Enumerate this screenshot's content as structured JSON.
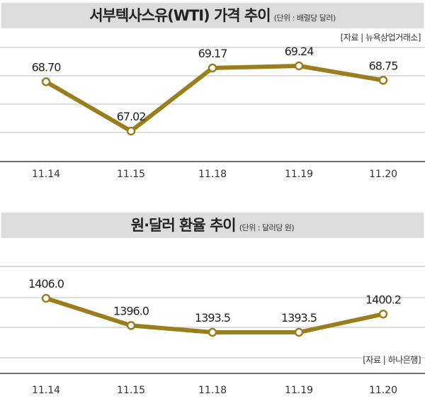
{
  "chart_data": [
    {
      "type": "line",
      "title": "서부텍사스유(WTI) 가격 추이",
      "unit": "(단위 : 배럴당 달러)",
      "source": "[자료 | 뉴욕상업거래소]",
      "categories": [
        "11.14",
        "11.15",
        "11.18",
        "11.19",
        "11.20"
      ],
      "values": [
        68.7,
        67.02,
        69.17,
        69.24,
        68.75
      ],
      "labels": [
        "68.70",
        "67.02",
        "69.17",
        "69.24",
        "68.75"
      ],
      "grid": true,
      "color": "#9a7d1c"
    },
    {
      "type": "line",
      "title": "원·달러 환율 추이",
      "unit": "(단위 : 달러당 원)",
      "source": "[자료 | 하나은행]",
      "categories": [
        "11.14",
        "11.15",
        "11.18",
        "11.19",
        "11.20"
      ],
      "values": [
        1406.0,
        1396.0,
        1393.5,
        1393.5,
        1400.2
      ],
      "labels": [
        "1406.0",
        "1396.0",
        "1393.5",
        "1393.5",
        "1400.2"
      ],
      "grid": true,
      "color": "#9a7d1c"
    }
  ]
}
